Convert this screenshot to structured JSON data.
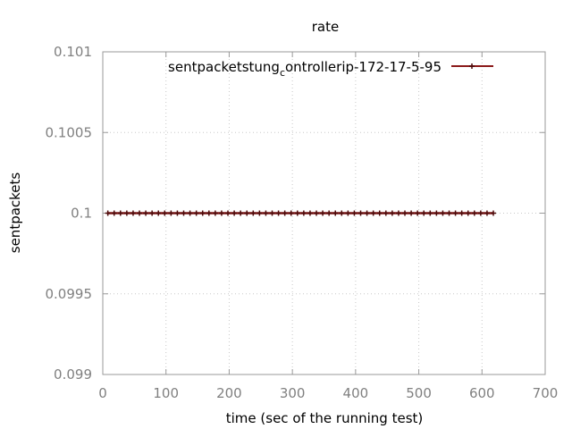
{
  "chart_data": {
    "type": "line",
    "title": "rate",
    "xlabel": "time (sec of the running test)",
    "ylabel": "sentpackets",
    "xlim": [
      0,
      700
    ],
    "ylim": [
      0.099,
      0.101
    ],
    "x_ticks": [
      0,
      100,
      200,
      300,
      400,
      500,
      600,
      700
    ],
    "y_ticks": [
      0.099,
      0.0995,
      0.1,
      0.1005,
      0.101
    ],
    "x_tick_labels": [
      "0",
      "100",
      "200",
      "300",
      "400",
      "500",
      "600",
      "700"
    ],
    "y_tick_labels": [
      "0.099",
      "0.0995",
      "0.1",
      "0.1005",
      "0.101"
    ],
    "grid": true,
    "legend_position": "top-right",
    "series": [
      {
        "name_parts": [
          "sentpackets",
          "tung",
          "c",
          "ontroller",
          "ip-172-17-5-95"
        ],
        "color": "#8b1a1a",
        "marker_color": "#4d0a0a",
        "x": [
          8,
          18,
          28,
          38,
          48,
          58,
          68,
          78,
          88,
          98,
          108,
          118,
          128,
          138,
          148,
          158,
          168,
          178,
          188,
          198,
          208,
          218,
          228,
          238,
          248,
          258,
          268,
          278,
          288,
          298,
          308,
          318,
          328,
          338,
          348,
          358,
          368,
          378,
          388,
          398,
          408,
          418,
          428,
          438,
          448,
          458,
          468,
          478,
          488,
          498,
          508,
          518,
          528,
          538,
          548,
          558,
          568,
          578,
          588,
          598,
          608,
          618
        ],
        "y": [
          0.1,
          0.1,
          0.1,
          0.1,
          0.1,
          0.1,
          0.1,
          0.1,
          0.1,
          0.1,
          0.1,
          0.1,
          0.1,
          0.1,
          0.1,
          0.1,
          0.1,
          0.1,
          0.1,
          0.1,
          0.1,
          0.1,
          0.1,
          0.1,
          0.1,
          0.1,
          0.1,
          0.1,
          0.1,
          0.1,
          0.1,
          0.1,
          0.1,
          0.1,
          0.1,
          0.1,
          0.1,
          0.1,
          0.1,
          0.1,
          0.1,
          0.1,
          0.1,
          0.1,
          0.1,
          0.1,
          0.1,
          0.1,
          0.1,
          0.1,
          0.1,
          0.1,
          0.1,
          0.1,
          0.1,
          0.1,
          0.1,
          0.1,
          0.1,
          0.1,
          0.1,
          0.1
        ]
      }
    ]
  }
}
